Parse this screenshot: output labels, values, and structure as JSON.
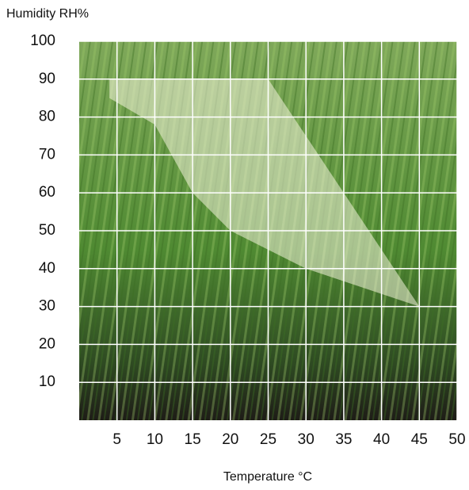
{
  "chart_data": {
    "type": "polygon",
    "y_axis_label": "Humidity RH%",
    "x_axis_label": "Temperature °C",
    "x": [
      4,
      25,
      45,
      30,
      20,
      15,
      10,
      4
    ],
    "y": [
      90,
      90,
      30,
      40,
      50,
      60,
      78,
      85
    ],
    "color": "#f4f4dc",
    "xlim": [
      0,
      50
    ],
    "ylim": [
      0,
      100
    ],
    "xticks": [
      5,
      10,
      15,
      20,
      25,
      30,
      35,
      40,
      45,
      50
    ],
    "yticks": [
      10,
      20,
      30,
      40,
      50,
      60,
      70,
      80,
      90,
      100
    ],
    "grid": true
  }
}
